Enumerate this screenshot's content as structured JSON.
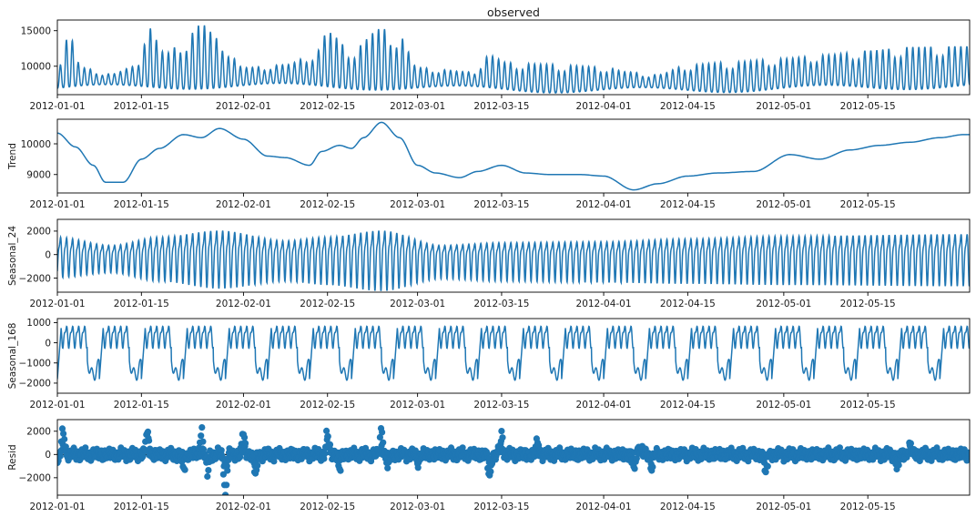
{
  "figure": {
    "background": "#ffffff",
    "line_color": "#1f77b4",
    "title": "observed",
    "shared_x_ticks": [
      "2012-01-01",
      "2012-01-15",
      "2012-02-01",
      "2012-02-15",
      "2012-03-01",
      "2012-03-15",
      "2012-04-01",
      "2012-04-15",
      "2012-05-01",
      "2012-05-15"
    ]
  },
  "chart_data": [
    {
      "type": "line",
      "title": "observed",
      "ylabel": "",
      "x_range": [
        "2012-01-01",
        "2012-05-31"
      ],
      "ylim": [
        6000,
        16500
      ],
      "yticks": [
        10000,
        15000
      ],
      "ytick_labels": [
        "10000",
        "15000"
      ],
      "series": [
        {
          "summary": "hourly observed load, daily cycle",
          "points": [
            [
              "2012-01-01",
              10500
            ],
            [
              "2012-01-03",
              14300
            ],
            [
              "2012-01-05",
              9800
            ],
            [
              "2012-01-10",
              8900
            ],
            [
              "2012-01-14",
              10000
            ],
            [
              "2012-01-16",
              15600
            ],
            [
              "2012-01-19",
              11800
            ],
            [
              "2012-01-22",
              13500
            ],
            [
              "2012-01-25",
              15900
            ],
            [
              "2012-01-28",
              13800
            ],
            [
              "2012-02-01",
              9800
            ],
            [
              "2012-02-08",
              10200
            ],
            [
              "2012-02-13",
              11800
            ],
            [
              "2012-02-15",
              14800
            ],
            [
              "2012-02-19",
              12300
            ],
            [
              "2012-02-24",
              15300
            ],
            [
              "2012-02-27",
              14200
            ],
            [
              "2012-03-01",
              9800
            ],
            [
              "2012-03-10",
              9200
            ],
            [
              "2012-03-13",
              11500
            ],
            [
              "2012-03-16",
              10500
            ],
            [
              "2012-03-22",
              10300
            ],
            [
              "2012-04-01",
              9900
            ],
            [
              "2012-04-05",
              9200
            ],
            [
              "2012-04-10",
              8800
            ],
            [
              "2012-04-15",
              10200
            ],
            [
              "2012-04-22",
              10600
            ],
            [
              "2012-05-01",
              11100
            ],
            [
              "2012-05-08",
              11600
            ],
            [
              "2012-05-15",
              12200
            ],
            [
              "2012-05-22",
              12700
            ],
            [
              "2012-05-31",
              12800
            ]
          ]
        }
      ]
    },
    {
      "type": "line",
      "title": "",
      "ylabel": "Trend",
      "x_range": [
        "2012-01-01",
        "2012-05-31"
      ],
      "ylim": [
        8400,
        10800
      ],
      "yticks": [
        9000,
        10000
      ],
      "ytick_labels": [
        "9000",
        "10000"
      ],
      "series": [
        {
          "points": [
            [
              "2012-01-01",
              10350
            ],
            [
              "2012-01-04",
              9900
            ],
            [
              "2012-01-07",
              9300
            ],
            [
              "2012-01-09",
              8750
            ],
            [
              "2012-01-12",
              8750
            ],
            [
              "2012-01-15",
              9500
            ],
            [
              "2012-01-18",
              9850
            ],
            [
              "2012-01-22",
              10300
            ],
            [
              "2012-01-25",
              10200
            ],
            [
              "2012-01-28",
              10500
            ],
            [
              "2012-02-01",
              10150
            ],
            [
              "2012-02-05",
              9600
            ],
            [
              "2012-02-08",
              9550
            ],
            [
              "2012-02-12",
              9300
            ],
            [
              "2012-02-14",
              9750
            ],
            [
              "2012-02-17",
              9950
            ],
            [
              "2012-02-19",
              9850
            ],
            [
              "2012-02-21",
              10200
            ],
            [
              "2012-02-24",
              10700
            ],
            [
              "2012-02-27",
              10200
            ],
            [
              "2012-03-01",
              9300
            ],
            [
              "2012-03-04",
              9050
            ],
            [
              "2012-03-08",
              8900
            ],
            [
              "2012-03-11",
              9100
            ],
            [
              "2012-03-15",
              9300
            ],
            [
              "2012-03-19",
              9050
            ],
            [
              "2012-03-23",
              9000
            ],
            [
              "2012-03-28",
              9000
            ],
            [
              "2012-04-01",
              8950
            ],
            [
              "2012-04-06",
              8500
            ],
            [
              "2012-04-10",
              8700
            ],
            [
              "2012-04-15",
              8950
            ],
            [
              "2012-04-20",
              9050
            ],
            [
              "2012-04-26",
              9100
            ],
            [
              "2012-05-02",
              9650
            ],
            [
              "2012-05-07",
              9500
            ],
            [
              "2012-05-12",
              9800
            ],
            [
              "2012-05-17",
              9950
            ],
            [
              "2012-05-22",
              10050
            ],
            [
              "2012-05-27",
              10200
            ],
            [
              "2012-05-31",
              10300
            ]
          ]
        }
      ]
    },
    {
      "type": "line",
      "title": "",
      "ylabel": "Seasonal_24",
      "x_range": [
        "2012-01-01",
        "2012-05-31"
      ],
      "ylim": [
        -3200,
        3000
      ],
      "yticks": [
        -2000,
        0,
        2000
      ],
      "ytick_labels": [
        "−2000",
        "0",
        "2000"
      ],
      "series": [
        {
          "summary": "daily seasonal component",
          "period_days": 1,
          "amplitude_upper": [
            [
              "2012-01-01",
              1900
            ],
            [
              "2012-01-10",
              1000
            ],
            [
              "2012-01-18",
              1900
            ],
            [
              "2012-01-28",
              2600
            ],
            [
              "2012-02-08",
              1500
            ],
            [
              "2012-02-15",
              1900
            ],
            [
              "2012-02-24",
              2600
            ],
            [
              "2012-03-05",
              1000
            ],
            [
              "2012-03-15",
              1300
            ],
            [
              "2012-04-01",
              1400
            ],
            [
              "2012-04-15",
              1700
            ],
            [
              "2012-05-01",
              2000
            ],
            [
              "2012-05-31",
              2200
            ]
          ],
          "amplitude_lower": [
            [
              "2012-01-01",
              -1900
            ],
            [
              "2012-01-10",
              -1500
            ],
            [
              "2012-01-18",
              -2200
            ],
            [
              "2012-01-28",
              -2800
            ],
            [
              "2012-02-08",
              -2200
            ],
            [
              "2012-02-15",
              -2500
            ],
            [
              "2012-02-24",
              -3000
            ],
            [
              "2012-03-05",
              -2000
            ],
            [
              "2012-03-15",
              -2200
            ],
            [
              "2012-04-01",
              -2300
            ],
            [
              "2012-04-15",
              -2400
            ],
            [
              "2012-05-01",
              -2500
            ],
            [
              "2012-05-31",
              -2600
            ]
          ]
        }
      ]
    },
    {
      "type": "line",
      "title": "",
      "ylabel": "Seasonal_168",
      "x_range": [
        "2012-01-01",
        "2012-05-31"
      ],
      "ylim": [
        -2500,
        1200
      ],
      "yticks": [
        -2000,
        -1000,
        0,
        1000
      ],
      "ytick_labels": [
        "−2000",
        "−1000",
        "0",
        "1000"
      ],
      "series": [
        {
          "summary": "weekly seasonal component",
          "period_days": 7,
          "weekday_high": 900,
          "weekend_low": -2000
        }
      ]
    },
    {
      "type": "scatter",
      "title": "",
      "ylabel": "Resid",
      "x_range": [
        "2012-01-01",
        "2012-05-31"
      ],
      "ylim": [
        -3500,
        3000
      ],
      "yticks": [
        -2000,
        0,
        2000
      ],
      "ytick_labels": [
        "−2000",
        "0",
        "2000"
      ],
      "baseline": 0,
      "series": [
        {
          "summary": "residual points",
          "spikes": [
            [
              "2012-01-01",
              -1200
            ],
            [
              "2012-01-02",
              2300
            ],
            [
              "2012-01-16",
              2800
            ],
            [
              "2012-01-22",
              -1500
            ],
            [
              "2012-01-25",
              2200
            ],
            [
              "2012-01-26",
              -1800
            ],
            [
              "2012-01-29",
              -3400
            ],
            [
              "2012-02-01",
              2000
            ],
            [
              "2012-02-03",
              -2300
            ],
            [
              "2012-02-15",
              2300
            ],
            [
              "2012-02-17",
              -1500
            ],
            [
              "2012-02-24",
              2300
            ],
            [
              "2012-02-25",
              -1200
            ],
            [
              "2012-03-01",
              -1000
            ],
            [
              "2012-03-13",
              -2200
            ],
            [
              "2012-03-15",
              2000
            ],
            [
              "2012-03-21",
              1200
            ],
            [
              "2012-04-06",
              -1500
            ],
            [
              "2012-04-07",
              1200
            ],
            [
              "2012-04-09",
              -1200
            ],
            [
              "2012-04-28",
              -1800
            ],
            [
              "2012-05-20",
              -1300
            ],
            [
              "2012-05-22",
              1000
            ]
          ]
        }
      ]
    }
  ]
}
